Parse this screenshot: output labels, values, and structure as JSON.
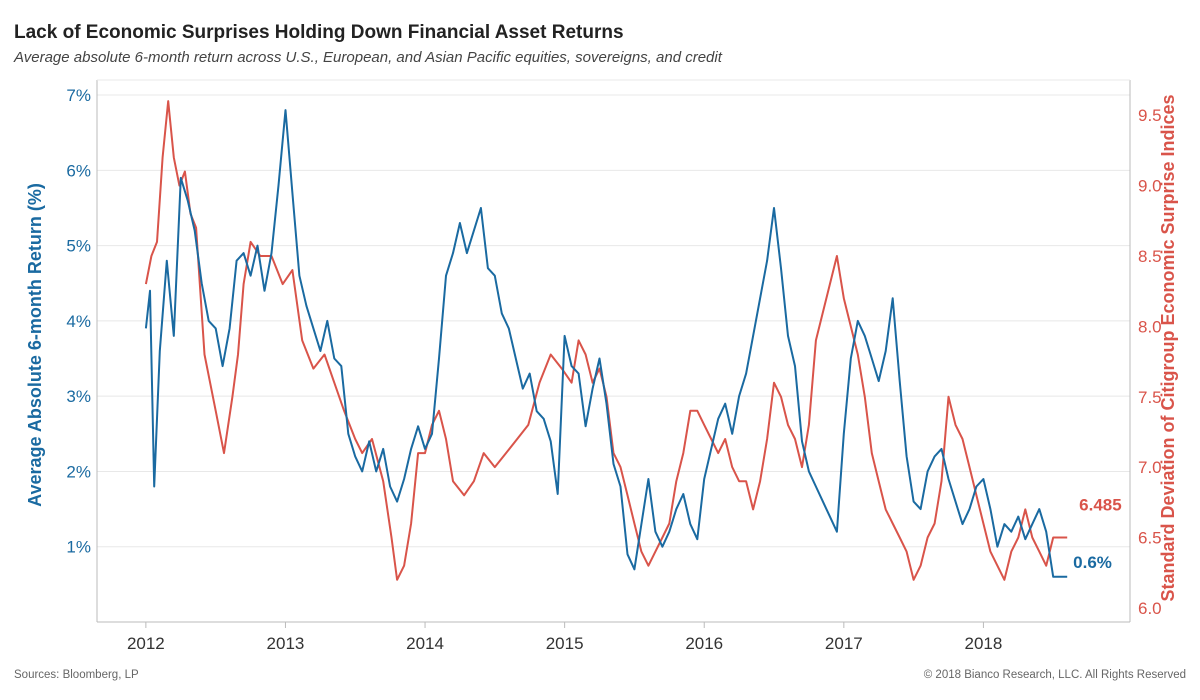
{
  "header": {
    "title": "Lack of Economic Surprises Holding Down Financial Asset Returns",
    "subtitle": "Average absolute 6-month return across U.S., European, and Asian Pacific equities, sovereigns, and credit"
  },
  "footer": {
    "source": "Sources: Bloomberg, LP",
    "copyright": "© 2018 Bianco Research, LLC. All Rights Reserved"
  },
  "colors": {
    "left": "#1a6aa1",
    "right": "#d9544a",
    "grid": "#e8e8e8",
    "axis": "#bbbbbb"
  },
  "chart_data": {
    "type": "line",
    "title": "Lack of Economic Surprises Holding Down Financial Asset Returns",
    "xlabel": "",
    "ylabel_left": "Average Absolute 6-month Return (%)",
    "ylabel_right": "Standard Deviation of Citigroup Economic Surprise Indices",
    "xlim": [
      2011.65,
      2019.05
    ],
    "ylim_left": [
      0.0,
      7.2
    ],
    "ylim_right": [
      5.9,
      9.75
    ],
    "x_ticks": [
      2012,
      2013,
      2014,
      2015,
      2016,
      2017,
      2018
    ],
    "x_tick_labels": [
      "2012",
      "2013",
      "2014",
      "2015",
      "2016",
      "2017",
      "2018"
    ],
    "y_left_ticks": [
      1,
      2,
      3,
      4,
      5,
      6,
      7
    ],
    "y_left_tick_labels": [
      "1%",
      "2%",
      "3%",
      "4%",
      "5%",
      "6%",
      "7%"
    ],
    "y_right_ticks": [
      6.0,
      6.5,
      7.0,
      7.5,
      8.0,
      8.5,
      9.0,
      9.5
    ],
    "y_right_tick_labels": [
      "6.0",
      "6.5",
      "7.0",
      "7.5",
      "8.0",
      "8.5",
      "9.0",
      "9.5"
    ],
    "grid": true,
    "series": [
      {
        "name": "Average Absolute 6-month Return (%)",
        "axis": "left",
        "color": "#1a6aa1",
        "end_label": "0.6%",
        "x": [
          2012.0,
          2012.03,
          2012.06,
          2012.1,
          2012.15,
          2012.2,
          2012.25,
          2012.3,
          2012.35,
          2012.4,
          2012.45,
          2012.5,
          2012.55,
          2012.6,
          2012.65,
          2012.7,
          2012.75,
          2012.8,
          2012.85,
          2012.9,
          2012.95,
          2013.0,
          2013.05,
          2013.1,
          2013.15,
          2013.2,
          2013.25,
          2013.3,
          2013.35,
          2013.4,
          2013.45,
          2013.5,
          2013.55,
          2013.6,
          2013.65,
          2013.7,
          2013.75,
          2013.8,
          2013.85,
          2013.9,
          2013.95,
          2014.0,
          2014.05,
          2014.1,
          2014.15,
          2014.2,
          2014.25,
          2014.3,
          2014.35,
          2014.4,
          2014.45,
          2014.5,
          2014.55,
          2014.6,
          2014.65,
          2014.7,
          2014.75,
          2014.8,
          2014.85,
          2014.9,
          2014.95,
          2015.0,
          2015.05,
          2015.1,
          2015.15,
          2015.2,
          2015.25,
          2015.3,
          2015.35,
          2015.4,
          2015.45,
          2015.5,
          2015.55,
          2015.6,
          2015.65,
          2015.7,
          2015.75,
          2015.8,
          2015.85,
          2015.9,
          2015.95,
          2016.0,
          2016.05,
          2016.1,
          2016.15,
          2016.2,
          2016.25,
          2016.3,
          2016.35,
          2016.4,
          2016.45,
          2016.5,
          2016.55,
          2016.6,
          2016.65,
          2016.7,
          2016.75,
          2016.8,
          2016.85,
          2016.9,
          2016.95,
          2017.0,
          2017.05,
          2017.1,
          2017.15,
          2017.2,
          2017.25,
          2017.3,
          2017.35,
          2017.4,
          2017.45,
          2017.5,
          2017.55,
          2017.6,
          2017.65,
          2017.7,
          2017.75,
          2017.8,
          2017.85,
          2017.9,
          2017.95,
          2018.0,
          2018.05,
          2018.1,
          2018.15,
          2018.2,
          2018.25,
          2018.3,
          2018.35,
          2018.4,
          2018.45,
          2018.5,
          2018.55,
          2018.6
        ],
        "values": [
          3.9,
          4.4,
          1.8,
          3.6,
          4.8,
          3.8,
          5.9,
          5.6,
          5.2,
          4.5,
          4.0,
          3.9,
          3.4,
          3.9,
          4.8,
          4.9,
          4.6,
          5.0,
          4.4,
          4.9,
          5.8,
          6.8,
          5.7,
          4.6,
          4.2,
          3.9,
          3.6,
          4.0,
          3.5,
          3.4,
          2.5,
          2.2,
          2.0,
          2.4,
          2.0,
          2.3,
          1.8,
          1.6,
          1.9,
          2.3,
          2.6,
          2.3,
          2.5,
          3.5,
          4.6,
          4.9,
          5.3,
          4.9,
          5.2,
          5.5,
          4.7,
          4.6,
          4.1,
          3.9,
          3.5,
          3.1,
          3.3,
          2.8,
          2.7,
          2.4,
          1.7,
          3.8,
          3.4,
          3.3,
          2.6,
          3.1,
          3.5,
          2.9,
          2.1,
          1.8,
          0.9,
          0.7,
          1.3,
          1.9,
          1.2,
          1.0,
          1.2,
          1.5,
          1.7,
          1.3,
          1.1,
          1.9,
          2.3,
          2.7,
          2.9,
          2.5,
          3.0,
          3.3,
          3.8,
          4.3,
          4.8,
          5.5,
          4.7,
          3.8,
          3.4,
          2.4,
          2.0,
          1.8,
          1.6,
          1.4,
          1.2,
          2.5,
          3.5,
          4.0,
          3.8,
          3.5,
          3.2,
          3.6,
          4.3,
          3.2,
          2.2,
          1.6,
          1.5,
          2.0,
          2.2,
          2.3,
          1.9,
          1.6,
          1.3,
          1.5,
          1.8,
          1.9,
          1.5,
          1.0,
          1.3,
          1.2,
          1.4,
          1.1,
          1.3,
          1.5,
          1.2,
          0.6,
          0.6,
          0.6
        ]
      },
      {
        "name": "Standard Deviation of Citigroup Economic Surprise Indices",
        "axis": "right",
        "color": "#d9544a",
        "end_label": "6.485",
        "x": [
          2012.0,
          2012.04,
          2012.08,
          2012.12,
          2012.16,
          2012.2,
          2012.24,
          2012.28,
          2012.32,
          2012.36,
          2012.42,
          2012.5,
          2012.56,
          2012.62,
          2012.66,
          2012.7,
          2012.75,
          2012.82,
          2012.9,
          2012.98,
          2013.05,
          2013.12,
          2013.2,
          2013.28,
          2013.35,
          2013.42,
          2013.5,
          2013.55,
          2013.62,
          2013.7,
          2013.76,
          2013.8,
          2013.85,
          2013.9,
          2013.95,
          2014.0,
          2014.05,
          2014.1,
          2014.15,
          2014.2,
          2014.28,
          2014.35,
          2014.42,
          2014.5,
          2014.58,
          2014.66,
          2014.74,
          2014.82,
          2014.9,
          2014.98,
          2015.05,
          2015.1,
          2015.15,
          2015.2,
          2015.25,
          2015.3,
          2015.35,
          2015.4,
          2015.45,
          2015.5,
          2015.55,
          2015.6,
          2015.65,
          2015.7,
          2015.75,
          2015.8,
          2015.85,
          2015.9,
          2015.95,
          2016.0,
          2016.05,
          2016.1,
          2016.15,
          2016.2,
          2016.25,
          2016.3,
          2016.35,
          2016.4,
          2016.45,
          2016.5,
          2016.55,
          2016.6,
          2016.65,
          2016.7,
          2016.75,
          2016.8,
          2016.85,
          2016.9,
          2016.95,
          2017.0,
          2017.05,
          2017.1,
          2017.15,
          2017.2,
          2017.25,
          2017.3,
          2017.35,
          2017.4,
          2017.45,
          2017.5,
          2017.55,
          2017.6,
          2017.65,
          2017.7,
          2017.75,
          2017.8,
          2017.85,
          2017.9,
          2017.95,
          2018.0,
          2018.05,
          2018.1,
          2018.15,
          2018.2,
          2018.25,
          2018.3,
          2018.35,
          2018.4,
          2018.45,
          2018.5,
          2018.55,
          2018.6
        ],
        "values": [
          8.3,
          8.5,
          8.6,
          9.2,
          9.6,
          9.2,
          9.0,
          9.1,
          8.8,
          8.7,
          7.8,
          7.4,
          7.1,
          7.5,
          7.8,
          8.3,
          8.6,
          8.5,
          8.5,
          8.3,
          8.4,
          7.9,
          7.7,
          7.8,
          7.6,
          7.4,
          7.2,
          7.1,
          7.2,
          6.9,
          6.5,
          6.2,
          6.3,
          6.6,
          7.1,
          7.1,
          7.3,
          7.4,
          7.2,
          6.9,
          6.8,
          6.9,
          7.1,
          7.0,
          7.1,
          7.2,
          7.3,
          7.6,
          7.8,
          7.7,
          7.6,
          7.9,
          7.8,
          7.6,
          7.7,
          7.5,
          7.1,
          7.0,
          6.8,
          6.6,
          6.4,
          6.3,
          6.4,
          6.5,
          6.6,
          6.9,
          7.1,
          7.4,
          7.4,
          7.3,
          7.2,
          7.1,
          7.2,
          7.0,
          6.9,
          6.9,
          6.7,
          6.9,
          7.2,
          7.6,
          7.5,
          7.3,
          7.2,
          7.0,
          7.3,
          7.9,
          8.1,
          8.3,
          8.5,
          8.2,
          8.0,
          7.8,
          7.5,
          7.1,
          6.9,
          6.7,
          6.6,
          6.5,
          6.4,
          6.2,
          6.3,
          6.5,
          6.6,
          6.9,
          7.5,
          7.3,
          7.2,
          7.0,
          6.8,
          6.6,
          6.4,
          6.3,
          6.2,
          6.4,
          6.5,
          6.7,
          6.5,
          6.4,
          6.3,
          6.5,
          6.5,
          6.5
        ]
      }
    ]
  }
}
